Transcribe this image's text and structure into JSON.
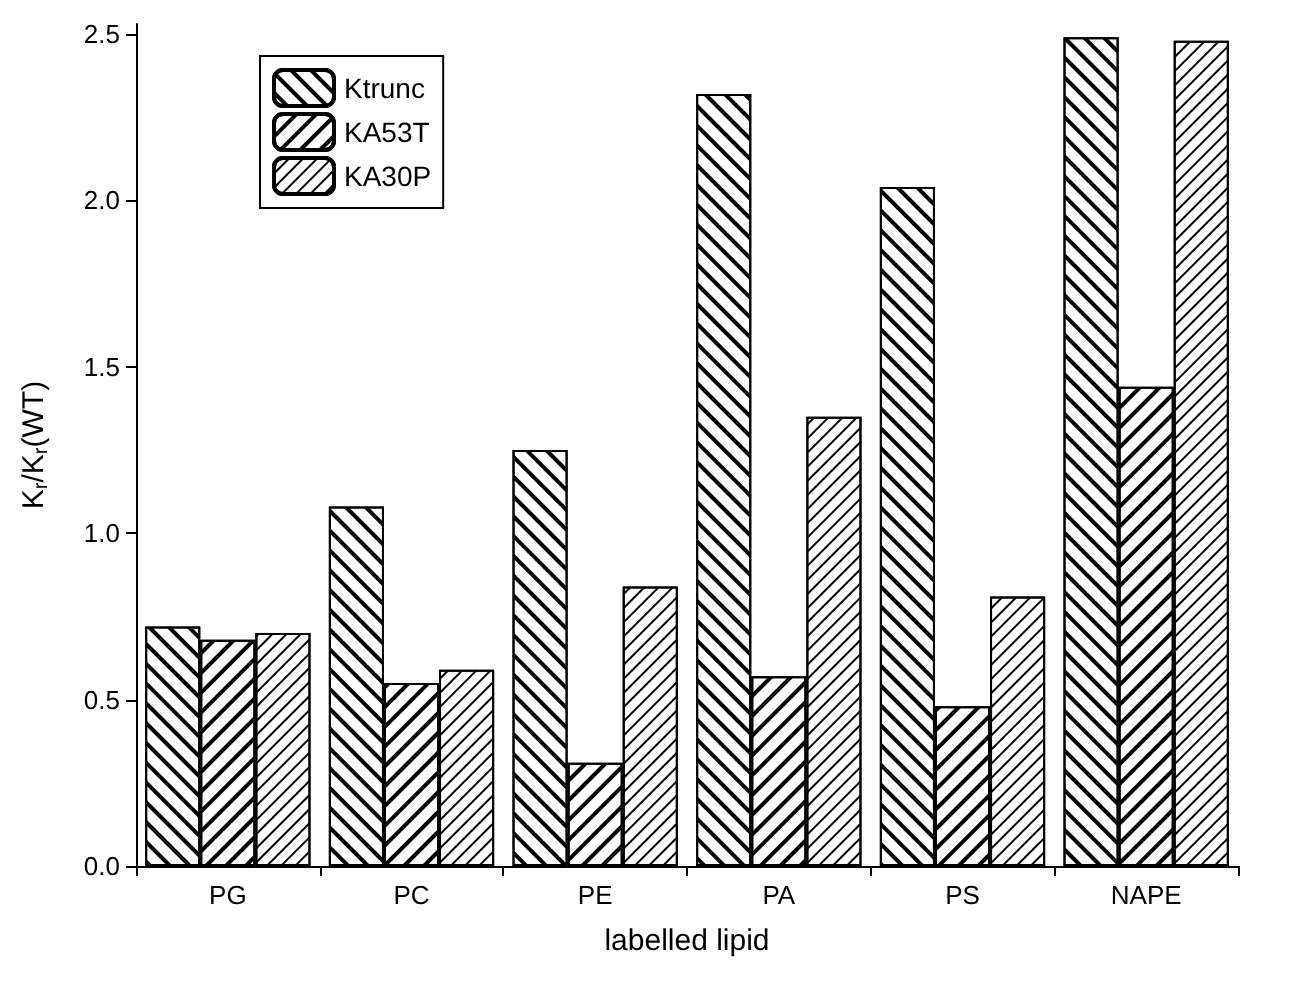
{
  "chart_data": {
    "type": "bar",
    "xlabel": "labelled lipid",
    "ylabel": "K$_{r}$/K$_{r}$(WT)",
    "categories": [
      "PG",
      "PC",
      "PE",
      "PA",
      "PS",
      "NAPE"
    ],
    "series": [
      {
        "name": "Ktrunc",
        "color": "#ffffff",
        "values": [
          0.72,
          1.08,
          1.25,
          2.32,
          2.04,
          2.49
        ]
      },
      {
        "name": "KA53T",
        "color": "#ffffff",
        "values": [
          0.68,
          0.55,
          0.31,
          0.57,
          0.48,
          1.44
        ]
      },
      {
        "name": "KA30P",
        "color": "#ffffff",
        "values": [
          0.7,
          0.59,
          0.84,
          1.35,
          0.81,
          2.48
        ]
      }
    ],
    "ylim": [
      0,
      2.53
    ],
    "yticks": [
      {
        "value": 0,
        "label": "0.0"
      },
      {
        "value": 0.5,
        "label": "0.5"
      },
      {
        "value": 1,
        "label": "1.0"
      },
      {
        "value": 1.5,
        "label": "1.5"
      },
      {
        "value": 2,
        "label": "2.0"
      },
      {
        "value": 2.5,
        "label": "2.5"
      }
    ],
    "legend": "top left",
    "grid": false
  }
}
